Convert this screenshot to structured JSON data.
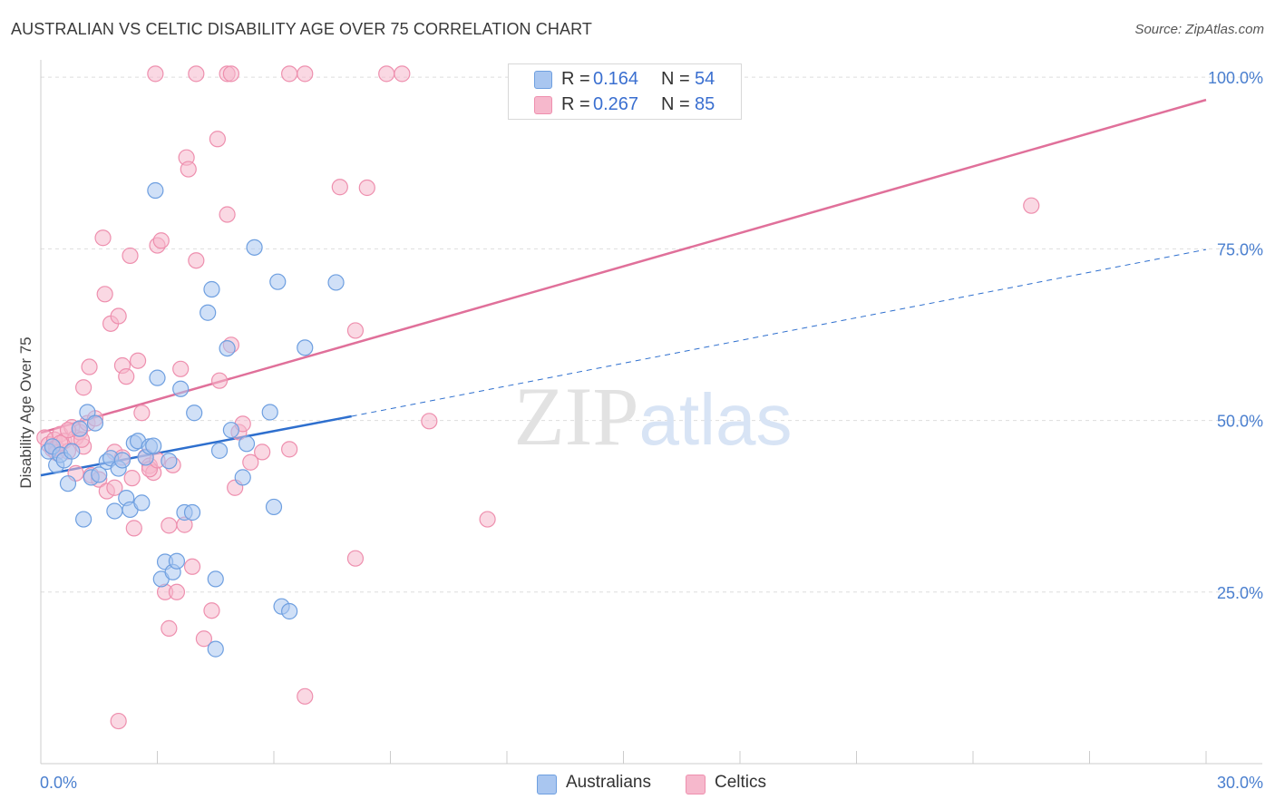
{
  "header": {
    "title": "AUSTRALIAN VS CELTIC DISABILITY AGE OVER 75 CORRELATION CHART",
    "source": "Source: ZipAtlas.com"
  },
  "legend": {
    "rows": [
      {
        "r_label": "R =",
        "r_value": "0.164",
        "n_label": "N =",
        "n_value": "54"
      },
      {
        "r_label": "R =",
        "r_value": "0.267",
        "n_label": "N =",
        "n_value": "85"
      }
    ]
  },
  "bottom_legend": {
    "australians": "Australians",
    "celtics": "Celtics"
  },
  "colors": {
    "blue_fill": "#a9c6f0",
    "blue_stroke": "#6e9fe0",
    "blue_line": "#2e6fce",
    "pink_fill": "#f6b8cc",
    "pink_stroke": "#ee8fae",
    "pink_line": "#e0709a",
    "tick_text": "#4a7fcf",
    "grid": "#dddddd"
  },
  "chart_data": {
    "type": "scatter",
    "title": "AUSTRALIAN VS CELTIC DISABILITY AGE OVER 75 CORRELATION CHART",
    "xlabel": "",
    "ylabel": "Disability Age Over 75",
    "xlim": [
      0,
      30
    ],
    "ylim": [
      0,
      102
    ],
    "x_tick_labels": [
      "0.0%",
      "30.0%"
    ],
    "y_ticks": [
      25,
      50,
      75,
      100
    ],
    "y_tick_labels": [
      "25.0%",
      "50.0%",
      "75.0%",
      "100.0%"
    ],
    "watermark": "ZIPatlas",
    "series": [
      {
        "name": "Australians",
        "r": 0.164,
        "n": 54,
        "trend_solid": [
          [
            0,
            42.0
          ],
          [
            8.0,
            50.6
          ]
        ],
        "trend_dashed": [
          [
            8.0,
            50.6
          ],
          [
            30,
            74.9
          ]
        ],
        "points": [
          [
            0.2,
            45.5
          ],
          [
            0.3,
            46.2
          ],
          [
            0.4,
            43.5
          ],
          [
            0.5,
            45.0
          ],
          [
            0.6,
            44.2
          ],
          [
            0.7,
            40.8
          ],
          [
            0.8,
            45.5
          ],
          [
            1.0,
            48.8
          ],
          [
            1.1,
            35.6
          ],
          [
            1.2,
            51.2
          ],
          [
            1.3,
            41.7
          ],
          [
            1.4,
            49.6
          ],
          [
            1.5,
            42.1
          ],
          [
            1.7,
            44.0
          ],
          [
            1.8,
            44.5
          ],
          [
            1.9,
            36.8
          ],
          [
            2.0,
            43.0
          ],
          [
            2.1,
            44.2
          ],
          [
            2.2,
            38.7
          ],
          [
            2.3,
            37.0
          ],
          [
            2.4,
            46.7
          ],
          [
            2.5,
            47.0
          ],
          [
            2.6,
            38.0
          ],
          [
            2.7,
            44.6
          ],
          [
            2.8,
            46.2
          ],
          [
            2.9,
            46.3
          ],
          [
            3.0,
            56.2
          ],
          [
            3.1,
            26.9
          ],
          [
            3.2,
            29.4
          ],
          [
            3.3,
            44.1
          ],
          [
            3.4,
            27.9
          ],
          [
            3.5,
            29.5
          ],
          [
            3.6,
            54.6
          ],
          [
            3.7,
            36.6
          ],
          [
            3.9,
            36.6
          ],
          [
            3.95,
            51.1
          ],
          [
            2.95,
            83.5
          ],
          [
            4.3,
            65.7
          ],
          [
            4.4,
            69.1
          ],
          [
            4.5,
            26.9
          ],
          [
            4.5,
            16.7
          ],
          [
            4.6,
            45.6
          ],
          [
            4.8,
            60.5
          ],
          [
            4.9,
            48.6
          ],
          [
            5.2,
            41.7
          ],
          [
            5.3,
            46.6
          ],
          [
            5.5,
            75.2
          ],
          [
            5.9,
            51.2
          ],
          [
            6.0,
            37.4
          ],
          [
            6.1,
            70.2
          ],
          [
            6.2,
            22.9
          ],
          [
            6.4,
            22.2
          ],
          [
            6.8,
            60.6
          ],
          [
            7.6,
            70.1
          ]
        ]
      },
      {
        "name": "Celtics",
        "r": 0.267,
        "n": 85,
        "trend_solid": [
          [
            0,
            48.2
          ],
          [
            30,
            96.7
          ]
        ],
        "points": [
          [
            0.1,
            47.5
          ],
          [
            0.2,
            46.5
          ],
          [
            0.3,
            45.8
          ],
          [
            0.35,
            47.2
          ],
          [
            0.4,
            46.0
          ],
          [
            0.5,
            48.0
          ],
          [
            0.6,
            47.0
          ],
          [
            0.7,
            45.5
          ],
          [
            0.8,
            49.0
          ],
          [
            0.9,
            47.5
          ],
          [
            1.0,
            48.3
          ],
          [
            1.1,
            46.2
          ],
          [
            1.2,
            49.6
          ],
          [
            1.3,
            42.0
          ],
          [
            1.4,
            50.3
          ],
          [
            1.5,
            41.4
          ],
          [
            1.6,
            76.6
          ],
          [
            1.65,
            68.4
          ],
          [
            1.7,
            39.7
          ],
          [
            1.8,
            64.1
          ],
          [
            1.9,
            45.4
          ],
          [
            2.0,
            65.2
          ],
          [
            2.1,
            58.0
          ],
          [
            2.2,
            56.4
          ],
          [
            2.3,
            74.0
          ],
          [
            2.35,
            41.6
          ],
          [
            2.4,
            34.3
          ],
          [
            2.5,
            58.7
          ],
          [
            2.6,
            51.1
          ],
          [
            2.7,
            44.7
          ],
          [
            2.8,
            43.4
          ],
          [
            2.9,
            42.4
          ],
          [
            3.0,
            75.5
          ],
          [
            3.1,
            76.2
          ],
          [
            3.2,
            25.0
          ],
          [
            3.3,
            19.7
          ],
          [
            3.4,
            43.5
          ],
          [
            3.5,
            25.0
          ],
          [
            3.6,
            57.5
          ],
          [
            3.7,
            34.8
          ],
          [
            3.75,
            88.3
          ],
          [
            3.8,
            86.6
          ],
          [
            3.9,
            28.7
          ],
          [
            4.0,
            73.3
          ],
          [
            4.2,
            18.2
          ],
          [
            4.4,
            22.3
          ],
          [
            4.55,
            91.0
          ],
          [
            4.6,
            55.8
          ],
          [
            4.8,
            80.0
          ],
          [
            4.9,
            61.0
          ],
          [
            5.0,
            40.2
          ],
          [
            5.1,
            48.3
          ],
          [
            5.2,
            49.5
          ],
          [
            5.4,
            43.9
          ],
          [
            5.7,
            45.4
          ],
          [
            6.4,
            45.8
          ],
          [
            6.8,
            9.8
          ],
          [
            7.7,
            84.0
          ],
          [
            8.1,
            63.1
          ],
          [
            8.1,
            29.9
          ],
          [
            8.4,
            83.9
          ],
          [
            10.0,
            49.9
          ],
          [
            11.5,
            35.6
          ],
          [
            25.5,
            81.3
          ],
          [
            2.0,
            6.2
          ],
          [
            0.4,
            45.3
          ],
          [
            2.8,
            42.9
          ],
          [
            3.0,
            44.2
          ],
          [
            4.0,
            100.5
          ],
          [
            4.8,
            100.5
          ],
          [
            4.9,
            100.5
          ],
          [
            6.4,
            100.5
          ],
          [
            6.8,
            100.5
          ],
          [
            8.9,
            100.5
          ],
          [
            9.3,
            100.5
          ],
          [
            2.95,
            100.5
          ],
          [
            1.1,
            54.8
          ],
          [
            1.25,
            57.8
          ],
          [
            0.9,
            42.3
          ],
          [
            2.1,
            44.6
          ],
          [
            0.5,
            46.7
          ],
          [
            0.7,
            48.6
          ],
          [
            1.9,
            40.2
          ],
          [
            3.3,
            34.7
          ],
          [
            1.05,
            47.2
          ]
        ]
      }
    ]
  }
}
